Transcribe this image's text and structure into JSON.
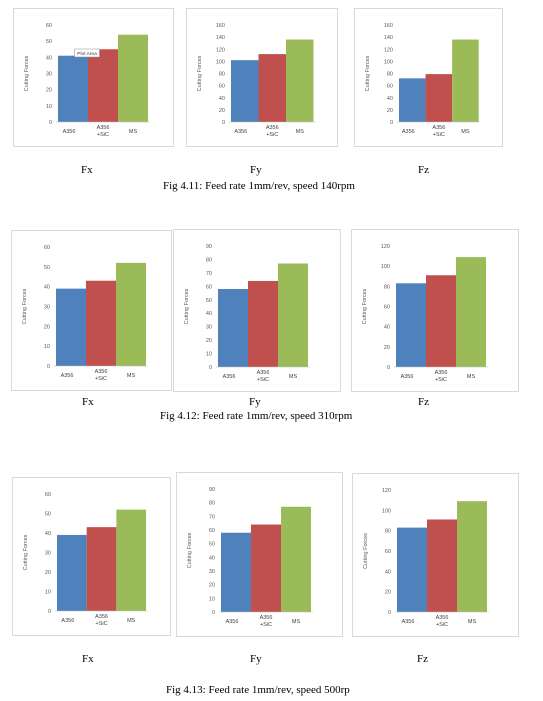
{
  "colors": {
    "A356": "#4f81bd",
    "A356 +SiC": "#c0504d",
    "MS": "#9bbb59"
  },
  "ylabel": "Cutting Forces",
  "tooltip": "Plot Area",
  "figures": [
    {
      "caption": "Fig 4.11: Feed rate 1mm/rev, speed 140rpm",
      "panels": [
        {
          "label": "Fx",
          "ymax": 60,
          "ystep": 10,
          "values": [
            41,
            45,
            54
          ],
          "tooltip": true
        },
        {
          "label": "Fy",
          "ymax": 160,
          "ystep": 20,
          "values": [
            102,
            112,
            136
          ]
        },
        {
          "label": "Fz",
          "ymax": 160,
          "ystep": 20,
          "values": [
            72,
            79,
            136
          ]
        }
      ]
    },
    {
      "caption": "Fig 4.12: Feed rate 1mm/rev, speed 310rpm",
      "panels": [
        {
          "label": "Fx",
          "ymax": 60,
          "ystep": 10,
          "values": [
            39,
            43,
            52
          ]
        },
        {
          "label": "Fy",
          "ymax": 90,
          "ystep": 10,
          "values": [
            58,
            64,
            77
          ]
        },
        {
          "label": "Fz",
          "ymax": 120,
          "ystep": 20,
          "values": [
            83,
            91,
            109
          ]
        }
      ]
    },
    {
      "caption": "Fig 4.13: Feed rate 1mm/rev, speed 500rp",
      "panels": [
        {
          "label": "Fx",
          "ymax": 60,
          "ystep": 10,
          "values": [
            39,
            43,
            52
          ]
        },
        {
          "label": "Fy",
          "ymax": 90,
          "ystep": 10,
          "values": [
            58,
            64,
            77
          ]
        },
        {
          "label": "Fz",
          "ymax": 120,
          "ystep": 20,
          "values": [
            83,
            91,
            109
          ]
        }
      ]
    }
  ],
  "chart_data": [
    {
      "type": "bar",
      "categories": [
        "A356",
        "A356 +SiC",
        "MS"
      ],
      "values": [
        41,
        45,
        54
      ],
      "ylabel": "Cutting Forces",
      "ylim": [
        0,
        60
      ],
      "title": "Fx"
    },
    {
      "type": "bar",
      "categories": [
        "A356",
        "A356 +SiC",
        "MS"
      ],
      "values": [
        102,
        112,
        136
      ],
      "ylabel": "Cutting Forces",
      "ylim": [
        0,
        160
      ],
      "title": "Fy"
    },
    {
      "type": "bar",
      "categories": [
        "A356",
        "A356 +SiC",
        "MS"
      ],
      "values": [
        72,
        79,
        136
      ],
      "ylabel": "Cutting Forces",
      "ylim": [
        0,
        160
      ],
      "title": "Fz"
    },
    {
      "type": "bar",
      "categories": [
        "A356",
        "A356 +SiC",
        "MS"
      ],
      "values": [
        39,
        43,
        52
      ],
      "ylabel": "Cutting Forces",
      "ylim": [
        0,
        60
      ],
      "title": "Fx"
    },
    {
      "type": "bar",
      "categories": [
        "A356",
        "A356 +SiC",
        "MS"
      ],
      "values": [
        58,
        64,
        77
      ],
      "ylabel": "Cutting Forces",
      "ylim": [
        0,
        90
      ],
      "title": "Fy"
    },
    {
      "type": "bar",
      "categories": [
        "A356",
        "A356 +SiC",
        "MS"
      ],
      "values": [
        83,
        91,
        109
      ],
      "ylabel": "Cutting Forces",
      "ylim": [
        0,
        120
      ],
      "title": "Fz"
    },
    {
      "type": "bar",
      "categories": [
        "A356",
        "A356 +SiC",
        "MS"
      ],
      "values": [
        39,
        43,
        52
      ],
      "ylabel": "Cutting Forces",
      "ylim": [
        0,
        60
      ],
      "title": "Fx"
    },
    {
      "type": "bar",
      "categories": [
        "A356",
        "A356 +SiC",
        "MS"
      ],
      "values": [
        58,
        64,
        77
      ],
      "ylabel": "Cutting Forces",
      "ylim": [
        0,
        90
      ],
      "title": "Fy"
    },
    {
      "type": "bar",
      "categories": [
        "A356",
        "A356 +SiC",
        "MS"
      ],
      "values": [
        83,
        91,
        109
      ],
      "ylabel": "Cutting Forces",
      "ylim": [
        0,
        120
      ],
      "title": "Fz"
    }
  ],
  "xlabels": {
    "a": "A356",
    "b1": "A356",
    "b2": "+SiC",
    "c": "MS"
  }
}
